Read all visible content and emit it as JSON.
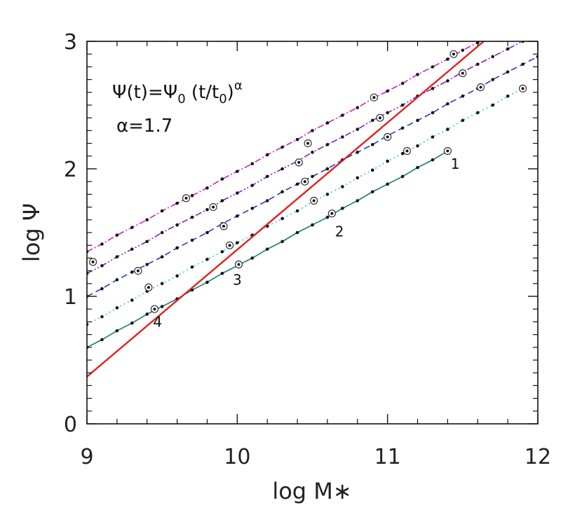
{
  "chart_data": {
    "type": "line",
    "xlabel": "log M∗",
    "ylabel": "log Ψ",
    "formula": [
      "Ψ(t)=Ψ",
      "0",
      " (t/t",
      "0",
      ")",
      "α"
    ],
    "alpha_label": "α=1.7",
    "xlim": [
      9,
      12
    ],
    "ylim": [
      0,
      3
    ],
    "xticks": [
      9,
      10,
      11,
      12
    ],
    "yticks": [
      0,
      1,
      2,
      3
    ],
    "xminorticks": [
      9.2,
      9.4,
      9.6,
      9.8,
      10.2,
      10.4,
      10.6,
      10.8,
      11.2,
      11.4,
      11.6,
      11.8
    ],
    "yminorticks": [
      0.1,
      0.2,
      0.3,
      0.4,
      0.5,
      0.6,
      0.7,
      0.8,
      0.9,
      1.1,
      1.2,
      1.3,
      1.4,
      1.5,
      1.6,
      1.7,
      1.8,
      1.9,
      2.1,
      2.2,
      2.3,
      2.4,
      2.5,
      2.6,
      2.7,
      2.8,
      2.9
    ],
    "series": [
      {
        "color": "#1a7a6e",
        "dash": "none",
        "x": [
          9.0,
          9.1,
          9.2,
          9.3,
          9.4,
          9.5,
          9.6,
          9.7,
          9.8,
          9.9,
          10.0,
          10.1,
          10.2,
          10.3,
          10.4,
          10.5,
          10.6,
          10.7,
          10.8,
          10.9,
          11.0,
          11.1,
          11.2,
          11.3,
          11.4
        ],
        "values": [
          0.6,
          0.66,
          0.73,
          0.79,
          0.86,
          0.92,
          0.98,
          1.05,
          1.11,
          1.18,
          1.24,
          1.3,
          1.37,
          1.43,
          1.5,
          1.56,
          1.62,
          1.69,
          1.75,
          1.82,
          1.88,
          1.94,
          2.01,
          2.07,
          2.14
        ],
        "circles": {
          "x": [
            9.45,
            10.01,
            10.63,
            11.4
          ],
          "values": [
            0.9,
            1.25,
            1.65,
            2.14
          ]
        }
      },
      {
        "color": "#2ac8e0",
        "dash": "2,4",
        "x": [
          9.0,
          9.1,
          9.2,
          9.3,
          9.4,
          9.5,
          9.6,
          9.7,
          9.8,
          9.9,
          10.0,
          10.1,
          10.2,
          10.3,
          10.4,
          10.5,
          10.6,
          10.7,
          10.8,
          10.9,
          11.0,
          11.1,
          11.2,
          11.3,
          11.4,
          11.5,
          11.6,
          11.7,
          11.8,
          11.9
        ],
        "values": [
          0.78,
          0.84,
          0.91,
          0.97,
          1.04,
          1.1,
          1.16,
          1.23,
          1.29,
          1.35,
          1.42,
          1.48,
          1.55,
          1.61,
          1.67,
          1.74,
          1.8,
          1.86,
          1.93,
          1.99,
          2.06,
          2.12,
          2.18,
          2.25,
          2.31,
          2.38,
          2.44,
          2.5,
          2.57,
          2.63
        ],
        "circles": {
          "x": [
            9.41,
            9.95,
            10.51,
            11.13,
            11.9
          ],
          "values": [
            1.07,
            1.4,
            1.75,
            2.14,
            2.63
          ]
        }
      },
      {
        "color": "#2040c0",
        "dash": "9,5",
        "x": [
          9.0,
          9.1,
          9.2,
          9.3,
          9.4,
          9.5,
          9.6,
          9.7,
          9.8,
          9.9,
          10.0,
          10.1,
          10.2,
          10.3,
          10.4,
          10.5,
          10.6,
          10.7,
          10.8,
          10.9,
          11.0,
          11.1,
          11.2,
          11.3,
          11.4,
          11.5,
          11.6,
          11.7,
          11.8,
          11.9,
          12.0
        ],
        "values": [
          1.0,
          1.06,
          1.13,
          1.19,
          1.25,
          1.31,
          1.38,
          1.44,
          1.5,
          1.57,
          1.63,
          1.69,
          1.75,
          1.82,
          1.88,
          1.94,
          2.0,
          2.07,
          2.13,
          2.19,
          2.26,
          2.32,
          2.38,
          2.44,
          2.51,
          2.57,
          2.63,
          2.7,
          2.76,
          2.82,
          2.88
        ],
        "circles": {
          "x": [
            9.34,
            9.91,
            10.45,
            11.0,
            11.62
          ],
          "values": [
            1.2,
            1.55,
            1.9,
            2.25,
            2.64
          ]
        }
      },
      {
        "color": "#8020c0",
        "dash": "9,3,2,3,2,3",
        "x": [
          9.0,
          9.1,
          9.2,
          9.3,
          9.4,
          9.5,
          9.6,
          9.7,
          9.8,
          9.9,
          10.0,
          10.1,
          10.2,
          10.3,
          10.4,
          10.5,
          10.6,
          10.7,
          10.8,
          10.9,
          11.0,
          11.1,
          11.2,
          11.3,
          11.4,
          11.5,
          11.6,
          11.7,
          11.8,
          11.9
        ],
        "values": [
          1.18,
          1.24,
          1.31,
          1.37,
          1.43,
          1.5,
          1.56,
          1.62,
          1.68,
          1.75,
          1.81,
          1.87,
          1.94,
          2.0,
          2.06,
          2.13,
          2.19,
          2.25,
          2.31,
          2.38,
          2.44,
          2.5,
          2.57,
          2.63,
          2.69,
          2.76,
          2.82,
          2.88,
          2.94,
          3.0
        ],
        "circles": {
          "x": [
            9.04,
            9.84,
            10.41,
            10.95,
            11.5
          ],
          "values": [
            1.27,
            1.7,
            2.05,
            2.4,
            2.75
          ]
        }
      },
      {
        "color": "#d020c0",
        "dash": "9,3,2,3",
        "x": [
          9.0,
          9.1,
          9.2,
          9.3,
          9.4,
          9.5,
          9.6,
          9.7,
          9.8,
          9.9,
          10.0,
          10.1,
          10.2,
          10.3,
          10.4,
          10.5,
          10.6,
          10.7,
          10.8,
          10.9,
          11.0,
          11.1,
          11.2,
          11.3,
          11.4,
          11.5,
          11.6
        ],
        "values": [
          1.35,
          1.41,
          1.48,
          1.54,
          1.6,
          1.67,
          1.73,
          1.79,
          1.85,
          1.92,
          1.98,
          2.04,
          2.11,
          2.17,
          2.23,
          2.3,
          2.36,
          2.42,
          2.48,
          2.55,
          2.61,
          2.67,
          2.74,
          2.8,
          2.86,
          2.93,
          2.99
        ],
        "circles": {
          "x": [
            9.66,
            10.47,
            10.91,
            11.44
          ],
          "values": [
            1.77,
            2.2,
            2.56,
            2.9
          ]
        }
      }
    ],
    "reference_line": {
      "color": "#e02020",
      "x": [
        9,
        11.64
      ],
      "values": [
        0.37,
        3.0
      ]
    },
    "point_labels": [
      {
        "text": "1",
        "x": 11.45,
        "y": 2.03
      },
      {
        "text": "2",
        "x": 10.68,
        "y": 1.5
      },
      {
        "text": "3",
        "x": 10.0,
        "y": 1.12
      },
      {
        "text": "4",
        "x": 9.47,
        "y": 0.79
      }
    ]
  }
}
